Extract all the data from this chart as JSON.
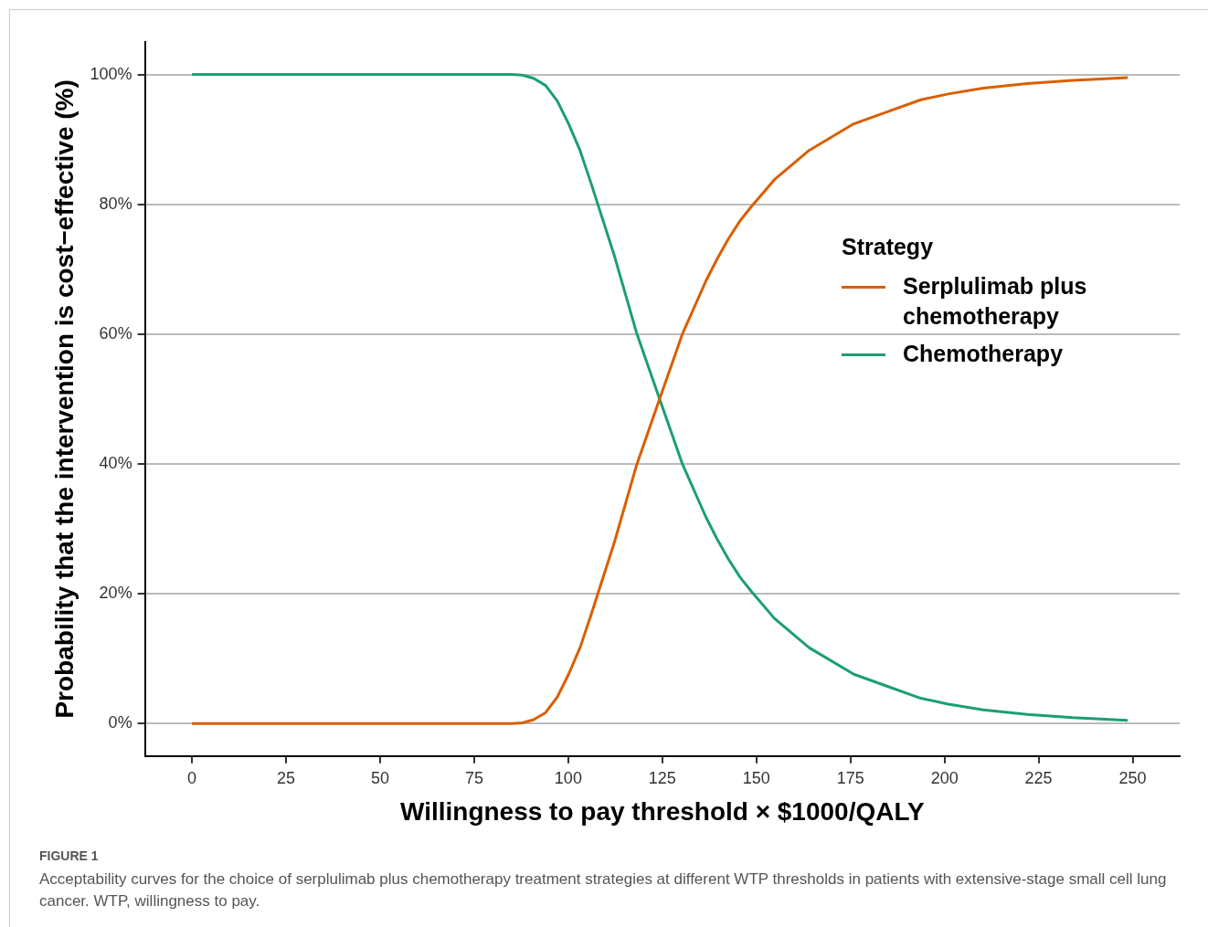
{
  "chart_data": {
    "type": "line",
    "xlabel": "Willingness to pay threshold × $1000/QALY",
    "ylabel": "Probability that the intervention is cost−effective (%)",
    "legend_title": "Strategy",
    "legend": "right",
    "grid": "y",
    "marker": "none",
    "line_style": "solid",
    "x": [
      0,
      84.9,
      87.8,
      90.8,
      94,
      97.1,
      100.1,
      103.2,
      106.2,
      112.3,
      118.1,
      124.1,
      130.4,
      136.6,
      139.5,
      142.5,
      145.6,
      148.6,
      154.8,
      164,
      175.9,
      185,
      193.7,
      201,
      210.3,
      222,
      234.1,
      248.7
    ],
    "series": [
      {
        "name": "Serplulimab plus chemotherapy",
        "color": "#d95f02",
        "values": [
          0,
          0,
          0.1,
          0.6,
          1.7,
          4.1,
          7.6,
          11.8,
          17,
          28,
          39.7,
          49.7,
          60.1,
          68.2,
          71.5,
          74.6,
          77.4,
          79.6,
          83.8,
          88.3,
          92.4,
          94.3,
          96.1,
          97,
          97.9,
          98.6,
          99.1,
          99.5
        ]
      },
      {
        "name": "Chemotherapy",
        "color": "#1b9e77",
        "values": [
          100,
          100,
          99.9,
          99.4,
          98.3,
          95.9,
          92.4,
          88.2,
          83,
          72,
          60.3,
          50.3,
          39.9,
          31.8,
          28.5,
          25.4,
          22.6,
          20.4,
          16.2,
          11.7,
          7.6,
          5.7,
          3.9,
          3,
          2.1,
          1.4,
          0.9,
          0.5
        ]
      }
    ],
    "xlim": [
      -12.5,
      262.5
    ],
    "xticks": [
      0,
      25,
      50,
      75,
      100,
      125,
      150,
      175,
      200,
      225,
      250
    ],
    "ylim": [
      -5,
      105
    ],
    "yticks": [
      {
        "value": 0,
        "label": "0%"
      },
      {
        "value": 20,
        "label": "20%"
      },
      {
        "value": 40,
        "label": "40%"
      },
      {
        "value": 60,
        "label": "60%"
      },
      {
        "value": 80,
        "label": "80%"
      },
      {
        "value": 100,
        "label": "100%"
      }
    ],
    "annotations": [
      "FIGURE 1",
      "Acceptability curves for the choice of serplulimab plus chemotherapy treatment strategies at different WTP thresholds in patients with extensive-stage small cell lung cancer. WTP, willingness to pay."
    ]
  }
}
